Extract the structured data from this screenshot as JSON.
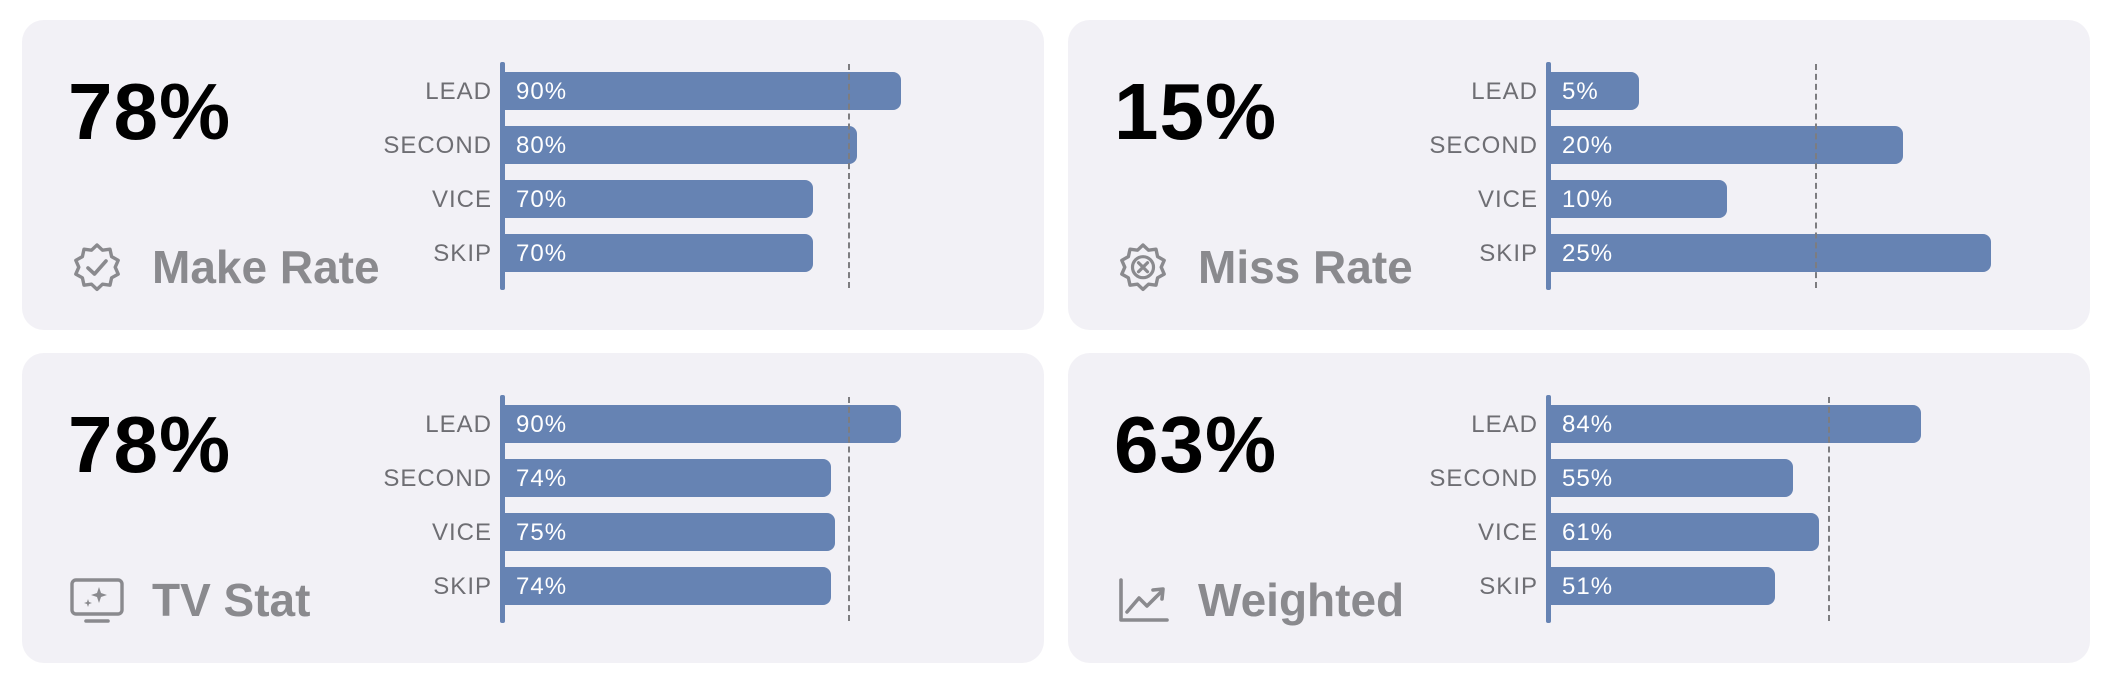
{
  "colors": {
    "card_background": "#f2f1f6",
    "bar": "#6683b3",
    "headline": "#000000",
    "label": "#8a8a8e",
    "row_label": "#6e6e73",
    "reference_line": "#7d7d80"
  },
  "cards": [
    {
      "big_value": "78%",
      "label": "Make Rate",
      "icon": "checkmark-seal-icon",
      "rows": [
        {
          "name": "LEAD",
          "value_label": "90%"
        },
        {
          "name": "SECOND",
          "value_label": "80%"
        },
        {
          "name": "VICE",
          "value_label": "70%"
        },
        {
          "name": "SKIP",
          "value_label": "70%"
        }
      ]
    },
    {
      "big_value": "15%",
      "label": "Miss Rate",
      "icon": "xmark-seal-icon",
      "rows": [
        {
          "name": "LEAD",
          "value_label": "5%"
        },
        {
          "name": "SECOND",
          "value_label": "20%"
        },
        {
          "name": "VICE",
          "value_label": "10%"
        },
        {
          "name": "SKIP",
          "value_label": "25%"
        }
      ]
    },
    {
      "big_value": "78%",
      "label": "TV Stat",
      "icon": "tv-sparkle-icon",
      "rows": [
        {
          "name": "LEAD",
          "value_label": "90%"
        },
        {
          "name": "SECOND",
          "value_label": "74%"
        },
        {
          "name": "VICE",
          "value_label": "75%"
        },
        {
          "name": "SKIP",
          "value_label": "74%"
        }
      ]
    },
    {
      "big_value": "63%",
      "label": "Weighted",
      "icon": "line-chart-icon",
      "rows": [
        {
          "name": "LEAD",
          "value_label": "84%"
        },
        {
          "name": "SECOND",
          "value_label": "55%"
        },
        {
          "name": "VICE",
          "value_label": "61%"
        },
        {
          "name": "SKIP",
          "value_label": "51%"
        }
      ]
    }
  ],
  "chart_data": [
    {
      "type": "bar",
      "orientation": "horizontal",
      "categories": [
        "LEAD",
        "SECOND",
        "VICE",
        "SKIP"
      ],
      "values": [
        90,
        80,
        70,
        70
      ],
      "reference_line": 78,
      "xlim": [
        0,
        100
      ],
      "unit": "%"
    },
    {
      "type": "bar",
      "orientation": "horizontal",
      "categories": [
        "LEAD",
        "SECOND",
        "VICE",
        "SKIP"
      ],
      "values": [
        5,
        20,
        10,
        25
      ],
      "reference_line": 15,
      "xlim": [
        0,
        25
      ],
      "unit": "%"
    },
    {
      "type": "bar",
      "orientation": "horizontal",
      "categories": [
        "LEAD",
        "SECOND",
        "VICE",
        "SKIP"
      ],
      "values": [
        90,
        74,
        75,
        74
      ],
      "reference_line": 78,
      "xlim": [
        0,
        100
      ],
      "unit": "%"
    },
    {
      "type": "bar",
      "orientation": "horizontal",
      "categories": [
        "LEAD",
        "SECOND",
        "VICE",
        "SKIP"
      ],
      "values": [
        84,
        55,
        61,
        51
      ],
      "reference_line": 63,
      "xlim": [
        0,
        100
      ],
      "unit": "%"
    }
  ]
}
